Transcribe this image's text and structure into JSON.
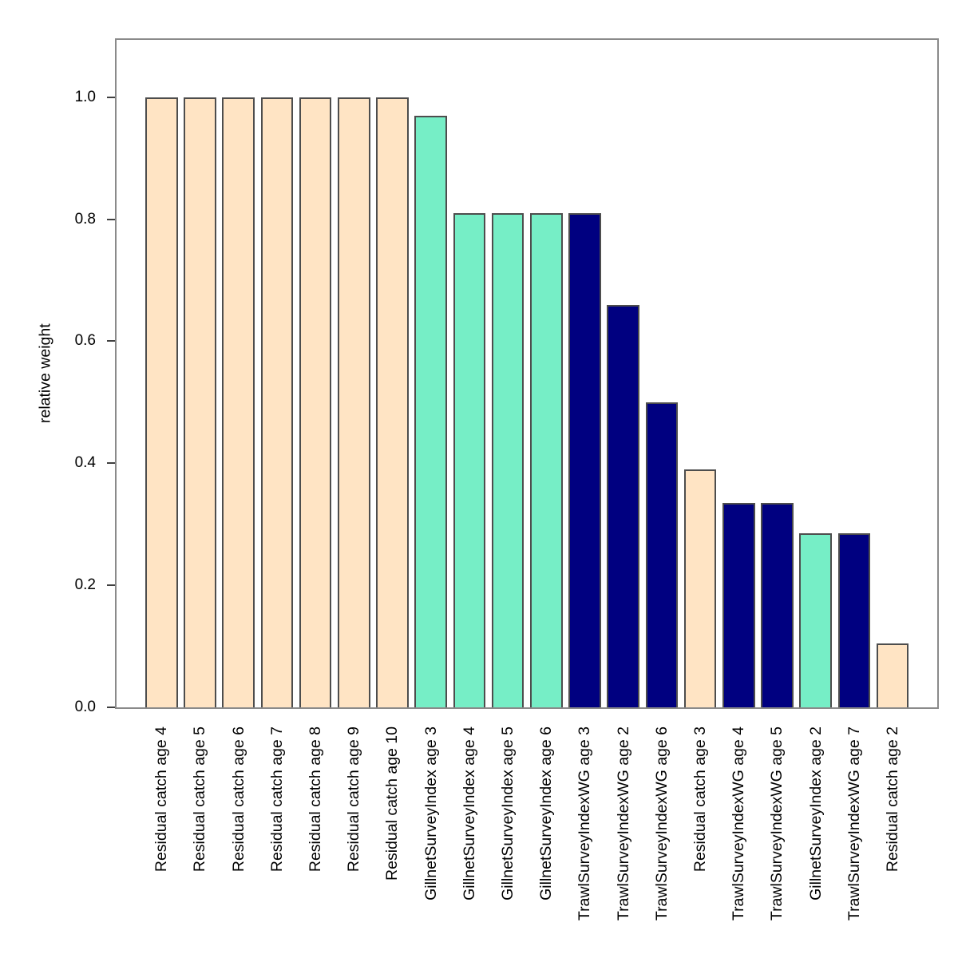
{
  "page": {
    "background_color": "#FFFFFF"
  },
  "chart_data": {
    "type": "bar",
    "title": "",
    "xlabel": "",
    "ylabel": "relative weight",
    "ylim": [
      0,
      1.1
    ],
    "grid": false,
    "legend": null,
    "axis_box_color": "#8A8A8A",
    "tick_color": "#404040",
    "bar_border_color": "#4D4D4D",
    "palette": {
      "Residual catch": "#FFE4C4",
      "GillnetSurveyIndex": "#76EEC6",
      "TrawlSurveyIndexWG": "#000080"
    },
    "yticks": [
      {
        "value": 0.0,
        "label": "0.0"
      },
      {
        "value": 0.2,
        "label": "0.2"
      },
      {
        "value": 0.4,
        "label": "0.4"
      },
      {
        "value": 0.6,
        "label": "0.6"
      },
      {
        "value": 0.8,
        "label": "0.8"
      },
      {
        "value": 1.0,
        "label": "1.0"
      }
    ],
    "bars": [
      {
        "label": "Residual catch age 4",
        "value": 1.0,
        "group": "Residual catch"
      },
      {
        "label": "Residual catch age 5",
        "value": 1.0,
        "group": "Residual catch"
      },
      {
        "label": "Residual catch age 6",
        "value": 1.0,
        "group": "Residual catch"
      },
      {
        "label": "Residual catch age 7",
        "value": 1.0,
        "group": "Residual catch"
      },
      {
        "label": "Residual catch age 8",
        "value": 1.0,
        "group": "Residual catch"
      },
      {
        "label": "Residual catch age 9",
        "value": 1.0,
        "group": "Residual catch"
      },
      {
        "label": "Residual catch age 10",
        "value": 1.0,
        "group": "Residual catch"
      },
      {
        "label": "GillnetSurveyIndex age 3",
        "value": 0.97,
        "group": "GillnetSurveyIndex"
      },
      {
        "label": "GillnetSurveyIndex age 4",
        "value": 0.81,
        "group": "GillnetSurveyIndex"
      },
      {
        "label": "GillnetSurveyIndex age 5",
        "value": 0.81,
        "group": "GillnetSurveyIndex"
      },
      {
        "label": "GillnetSurveyIndex age 6",
        "value": 0.81,
        "group": "GillnetSurveyIndex"
      },
      {
        "label": "TrawlSurveyIndexWG age 3",
        "value": 0.81,
        "group": "TrawlSurveyIndexWG"
      },
      {
        "label": "TrawlSurveyIndexWG age 2",
        "value": 0.66,
        "group": "TrawlSurveyIndexWG"
      },
      {
        "label": "TrawlSurveyIndexWG age 6",
        "value": 0.5,
        "group": "TrawlSurveyIndexWG"
      },
      {
        "label": "Residual catch age 3",
        "value": 0.39,
        "group": "Residual catch"
      },
      {
        "label": "TrawlSurveyIndexWG age 4",
        "value": 0.335,
        "group": "TrawlSurveyIndexWG"
      },
      {
        "label": "TrawlSurveyIndexWG age 5",
        "value": 0.335,
        "group": "TrawlSurveyIndexWG"
      },
      {
        "label": "GillnetSurveyIndex age 2",
        "value": 0.285,
        "group": "GillnetSurveyIndex"
      },
      {
        "label": "TrawlSurveyIndexWG age 7",
        "value": 0.285,
        "group": "TrawlSurveyIndexWG"
      },
      {
        "label": "Residual catch age 2",
        "value": 0.105,
        "group": "Residual catch"
      }
    ]
  }
}
